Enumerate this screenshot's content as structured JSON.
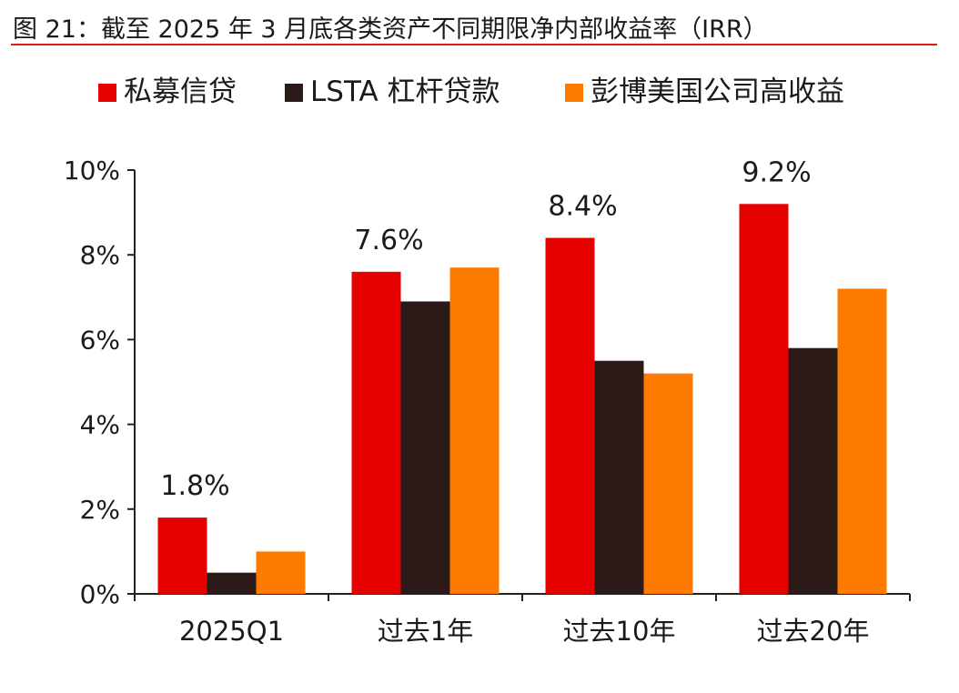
{
  "figure_title": "图 21：截至 2025 年 3 月底各类资产不同期限净内部收益率（IRR）",
  "chart_data": {
    "type": "bar",
    "title": "图 21：截至 2025 年 3 月底各类资产不同期限净内部收益率（IRR）",
    "categories": [
      "2025Q1",
      "过去1年",
      "过去10年",
      "过去20年"
    ],
    "series": [
      {
        "name": "私募信贷",
        "color": "#e60000",
        "values": [
          1.8,
          7.6,
          8.4,
          9.2
        ]
      },
      {
        "name": "LSTA 杠杆贷款",
        "color": "#2b1a17",
        "values": [
          0.5,
          6.9,
          5.5,
          5.8
        ]
      },
      {
        "name": "彭博美国公司高收益",
        "color": "#ff7b00",
        "values": [
          1.0,
          7.7,
          5.2,
          7.2
        ]
      }
    ],
    "ylim": [
      0,
      10
    ],
    "yticks": [
      0,
      2,
      4,
      6,
      8,
      10
    ],
    "ytick_labels": [
      "0%",
      "2%",
      "4%",
      "6%",
      "8%",
      "10%"
    ],
    "data_labels": [
      "1.8%",
      "7.6%",
      "8.4%",
      "9.2%"
    ],
    "data_label_series": 0,
    "legend_position": "top",
    "grid": false,
    "xlabel": "",
    "ylabel": ""
  }
}
